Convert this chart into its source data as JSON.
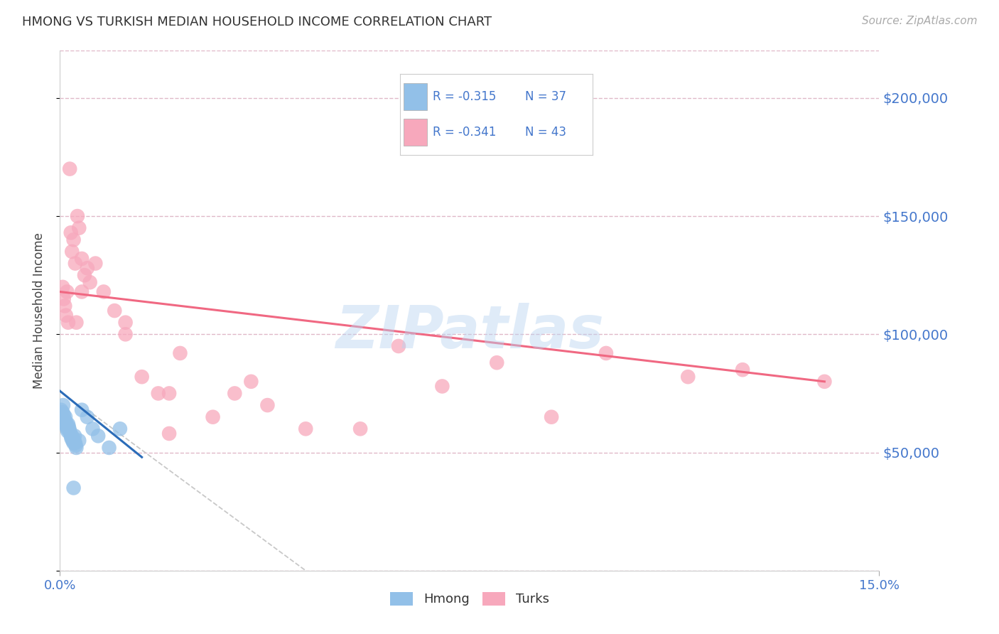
{
  "title": "HMONG VS TURKISH MEDIAN HOUSEHOLD INCOME CORRELATION CHART",
  "source": "Source: ZipAtlas.com",
  "ylabel": "Median Household Income",
  "y_ticks": [
    0,
    50000,
    100000,
    150000,
    200000
  ],
  "y_tick_labels": [
    "",
    "$50,000",
    "$100,000",
    "$150,000",
    "$200,000"
  ],
  "x_min": 0.0,
  "x_max": 15.0,
  "y_min": 0,
  "y_max": 220000,
  "hmong_color": "#92c0e8",
  "turks_color": "#f7a8bc",
  "hmong_line_color": "#2b6cb8",
  "turks_line_color": "#f06882",
  "diag_color": "#c8c8c8",
  "axis_color": "#4477cc",
  "grid_color": "#e0b8c8",
  "legend_R_hmong": "R = -0.315",
  "legend_N_hmong": "N = 37",
  "legend_R_turks": "R = -0.341",
  "legend_N_turks": "N = 43",
  "hmong_x": [
    0.02,
    0.03,
    0.04,
    0.05,
    0.06,
    0.07,
    0.08,
    0.09,
    0.1,
    0.11,
    0.12,
    0.13,
    0.14,
    0.15,
    0.16,
    0.17,
    0.18,
    0.19,
    0.2,
    0.21,
    0.22,
    0.23,
    0.24,
    0.25,
    0.26,
    0.27,
    0.28,
    0.29,
    0.3,
    0.35,
    0.4,
    0.5,
    0.6,
    0.7,
    0.9,
    1.1,
    0.25
  ],
  "hmong_y": [
    68000,
    65000,
    63000,
    67000,
    70000,
    66000,
    64000,
    62000,
    65000,
    63000,
    61000,
    60000,
    59000,
    62000,
    61000,
    60000,
    59000,
    58000,
    57000,
    56000,
    57000,
    55000,
    56000,
    54000,
    55000,
    57000,
    54000,
    53000,
    52000,
    55000,
    68000,
    65000,
    60000,
    57000,
    52000,
    60000,
    35000
  ],
  "turks_x": [
    0.05,
    0.07,
    0.09,
    0.11,
    0.13,
    0.15,
    0.18,
    0.2,
    0.22,
    0.25,
    0.28,
    0.32,
    0.35,
    0.4,
    0.45,
    0.5,
    0.55,
    0.65,
    0.8,
    1.0,
    1.2,
    1.5,
    1.8,
    2.0,
    2.2,
    2.8,
    3.2,
    3.8,
    4.5,
    5.5,
    6.2,
    7.0,
    8.0,
    9.0,
    10.0,
    11.5,
    12.5,
    14.0,
    0.4,
    0.3,
    1.2,
    2.0,
    3.5
  ],
  "turks_y": [
    120000,
    115000,
    112000,
    108000,
    118000,
    105000,
    170000,
    143000,
    135000,
    140000,
    130000,
    150000,
    145000,
    132000,
    125000,
    128000,
    122000,
    130000,
    118000,
    110000,
    105000,
    82000,
    75000,
    75000,
    92000,
    65000,
    75000,
    70000,
    60000,
    60000,
    95000,
    78000,
    88000,
    65000,
    92000,
    82000,
    85000,
    80000,
    118000,
    105000,
    100000,
    58000,
    80000
  ],
  "hmong_trend_x0": 0.0,
  "hmong_trend_y0": 76000,
  "hmong_trend_x1": 1.5,
  "hmong_trend_y1": 48000,
  "turks_trend_x0": 0.0,
  "turks_trend_y0": 118000,
  "turks_trend_x1": 14.0,
  "turks_trend_y1": 80000,
  "diag_x0": 0.5,
  "diag_y0": 68000,
  "diag_x1": 4.5,
  "diag_y1": 0,
  "watermark": "ZIPatlas",
  "watermark_font": 60
}
